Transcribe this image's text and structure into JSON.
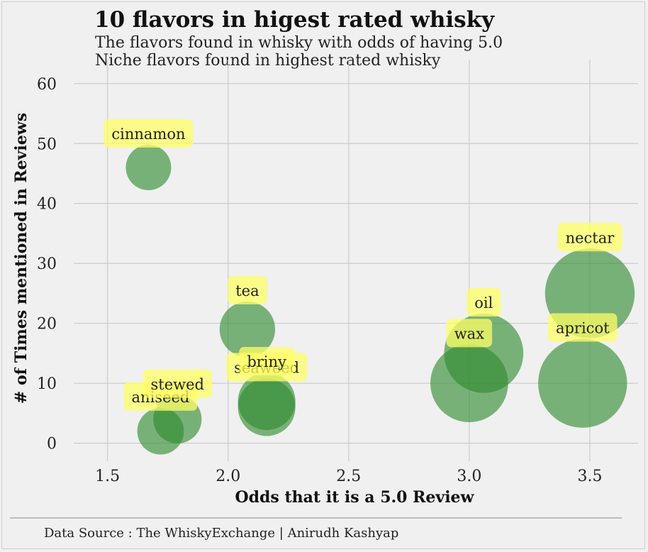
{
  "chart_data": {
    "type": "scatter",
    "title": "10 flavors in higest rated whisky",
    "subtitle_lines": [
      "The flavors found in whisky with odds of having 5.0",
      "Niche flavors found in highest rated whisky"
    ],
    "xlabel": "Odds that it is a 5.0 Review",
    "ylabel": "# of Times mentioned in Reviews",
    "xlim": [
      1.36,
      3.7
    ],
    "ylim": [
      -3,
      64
    ],
    "xticks": [
      1.5,
      2.0,
      2.5,
      3.0,
      3.5
    ],
    "xtick_labels": [
      "1.5",
      "2.0",
      "2.5",
      "3.0",
      "3.5"
    ],
    "yticks": [
      0,
      10,
      20,
      30,
      40,
      50,
      60
    ],
    "ytick_labels": [
      "0",
      "10",
      "20",
      "30",
      "40",
      "50",
      "60"
    ],
    "grid": true,
    "points": [
      {
        "label": "cinnamon",
        "x": 1.67,
        "y": 46,
        "size": 1.67
      },
      {
        "label": "aniseed",
        "x": 1.72,
        "y": 2,
        "size": 1.72
      },
      {
        "label": "stewed",
        "x": 1.79,
        "y": 4,
        "size": 1.79
      },
      {
        "label": "tea",
        "x": 2.08,
        "y": 19,
        "size": 2.08
      },
      {
        "label": "seaweed",
        "x": 2.16,
        "y": 6,
        "size": 2.16
      },
      {
        "label": "briny",
        "x": 2.16,
        "y": 7,
        "size": 2.16
      },
      {
        "label": "wax",
        "x": 3.0,
        "y": 10,
        "size": 3.0
      },
      {
        "label": "oil",
        "x": 3.06,
        "y": 15,
        "size": 3.06
      },
      {
        "label": "nectar",
        "x": 3.5,
        "y": 25,
        "size": 3.5
      },
      {
        "label": "apricot",
        "x": 3.47,
        "y": 10,
        "size": 3.47
      }
    ],
    "bubble_color": "#2e8b2e",
    "label_box_color": "#ffff66",
    "caption": "Data Source : The WhiskyExchange | Anirudh Kashyap"
  }
}
